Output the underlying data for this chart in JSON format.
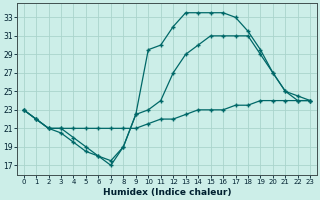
{
  "xlabel": "Humidex (Indice chaleur)",
  "bg_color": "#cceee8",
  "grid_color": "#aad4cc",
  "line_color": "#006868",
  "xlim": [
    -0.5,
    23.5
  ],
  "ylim": [
    16.0,
    34.5
  ],
  "xticks": [
    0,
    1,
    2,
    3,
    4,
    5,
    6,
    7,
    8,
    9,
    10,
    11,
    12,
    13,
    14,
    15,
    16,
    17,
    18,
    19,
    20,
    21,
    22,
    23
  ],
  "yticks": [
    17,
    19,
    21,
    23,
    25,
    27,
    29,
    31,
    33
  ],
  "line1_x": [
    0,
    1,
    2,
    3,
    4,
    5,
    6,
    7,
    8,
    9,
    10,
    11,
    12,
    13,
    14,
    15,
    16,
    17,
    18,
    19,
    20,
    21,
    22,
    23
  ],
  "line1_y": [
    23,
    22,
    21,
    21,
    21,
    21,
    21,
    21,
    21,
    21,
    21.5,
    22,
    22,
    22.5,
    23,
    23,
    23,
    23.5,
    23.5,
    24,
    24,
    24,
    24,
    24
  ],
  "line2_x": [
    0,
    1,
    2,
    3,
    4,
    5,
    6,
    7,
    8,
    9,
    10,
    11,
    12,
    13,
    14,
    15,
    16,
    17,
    18,
    19,
    20,
    21,
    22,
    23
  ],
  "line2_y": [
    23,
    22,
    21,
    21,
    20,
    19,
    18,
    17.5,
    19,
    22.5,
    23,
    24,
    27,
    29,
    30,
    31,
    31,
    31,
    31,
    29,
    27,
    25,
    24.5,
    24
  ],
  "line3_x": [
    0,
    1,
    2,
    3,
    4,
    5,
    6,
    7,
    8,
    9,
    10,
    11,
    12,
    13,
    14,
    15,
    16,
    17,
    18,
    19,
    20,
    21,
    22,
    23
  ],
  "line3_y": [
    23,
    22,
    21,
    20.5,
    19.5,
    18.5,
    18,
    17,
    19,
    22.5,
    29.5,
    30,
    32,
    33.5,
    33.5,
    33.5,
    33.5,
    33,
    31.5,
    29.5,
    27,
    25,
    24,
    24
  ]
}
